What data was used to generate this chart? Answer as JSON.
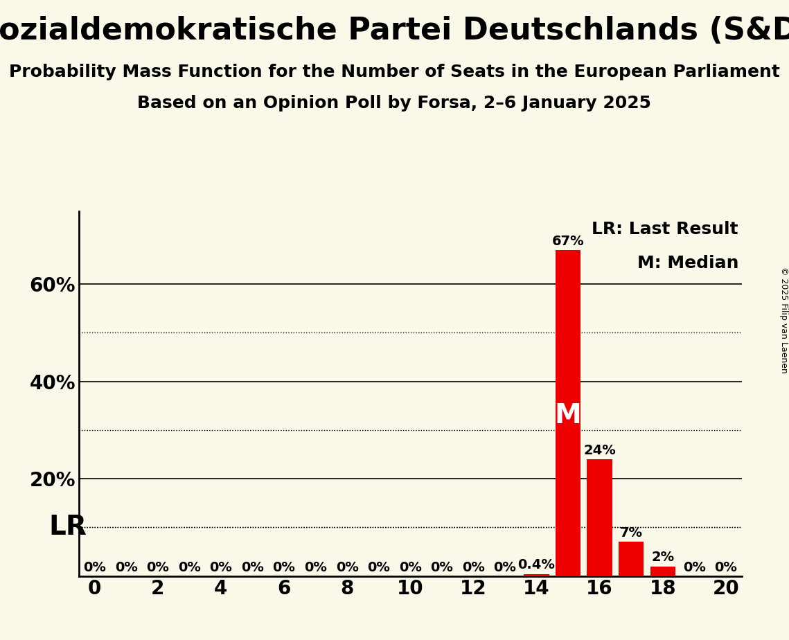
{
  "title": "Sozialdemokratische Partei Deutschlands (S&D)",
  "subtitle1": "Probability Mass Function for the Number of Seats in the European Parliament",
  "subtitle2": "Based on an Opinion Poll by Forsa, 2–6 January 2025",
  "copyright": "© 2025 Filip van Laenen",
  "bar_color": "#ee0000",
  "background_color": "#faf8e8",
  "seats": [
    0,
    1,
    2,
    3,
    4,
    5,
    6,
    7,
    8,
    9,
    10,
    11,
    12,
    13,
    14,
    15,
    16,
    17,
    18,
    19,
    20
  ],
  "probabilities": [
    0.0,
    0.0,
    0.0,
    0.0,
    0.0,
    0.0,
    0.0,
    0.0,
    0.0,
    0.0,
    0.0,
    0.0,
    0.0,
    0.0,
    0.4,
    67.0,
    24.0,
    7.0,
    2.0,
    0.0,
    0.0
  ],
  "bar_labels": [
    "0%",
    "0%",
    "0%",
    "0%",
    "0%",
    "0%",
    "0%",
    "0%",
    "0%",
    "0%",
    "0%",
    "0%",
    "0%",
    "0%",
    "0.4%",
    "67%",
    "24%",
    "7%",
    "2%",
    "0%",
    "0%"
  ],
  "median_seat": 15,
  "lr_value": 10,
  "lr_label": "LR",
  "median_label": "M",
  "legend_lr": "LR: Last Result",
  "legend_m": "M: Median",
  "xlim": [
    -0.5,
    20.5
  ],
  "ylim": [
    0,
    75
  ],
  "yticks": [
    20,
    40,
    60
  ],
  "ytick_labels": [
    "20%",
    "40%",
    "60%"
  ],
  "dotted_yticks": [
    10,
    30,
    50
  ],
  "xticks": [
    0,
    2,
    4,
    6,
    8,
    10,
    12,
    14,
    16,
    18,
    20
  ],
  "bar_label_fontsize": 14,
  "title_fontsize": 32,
  "subtitle_fontsize": 18,
  "axis_tick_fontsize": 20,
  "annotation_fontsize": 28,
  "legend_fontsize": 18,
  "copyright_fontsize": 9
}
